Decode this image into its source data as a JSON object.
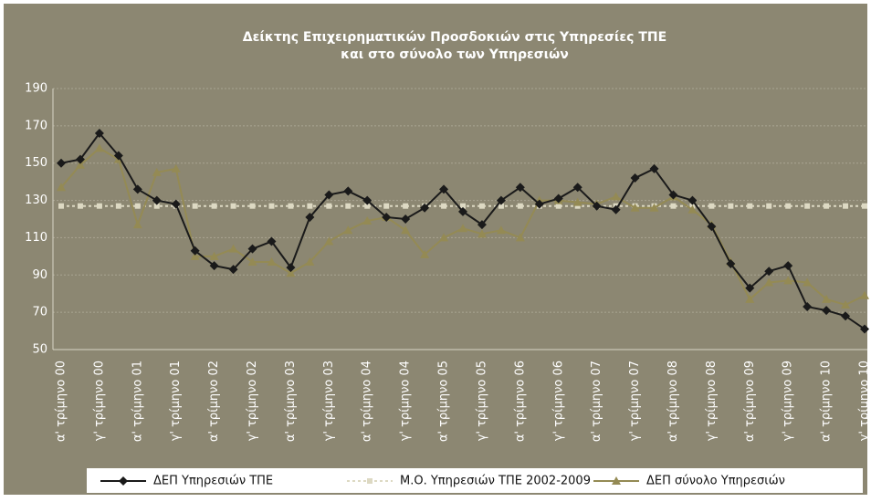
{
  "chart_data": {
    "type": "line",
    "title": [
      "Δείκτης Επιχειρηματικών Προσδοκιών στις Υπηρεσίες ΤΠΕ",
      "και στο σύνολο των Υπηρεσιών"
    ],
    "categories": [
      "α' τρίμηνο 00",
      null,
      "γ' τρίμηνο 00",
      null,
      "α' τρίμηνο 01",
      null,
      "γ' τρίμηνο 01",
      null,
      "α' τρίμηνο 02",
      null,
      "γ' τρίμηνο 02",
      null,
      "α' τρίμηνο 03",
      null,
      "γ' τρίμηνο 03",
      null,
      "α' τρίμηνο 04",
      null,
      "γ' τρίμηνο 04",
      null,
      "α' τρίμηνο 05",
      null,
      "γ' τρίμηνο 05",
      null,
      "α' τρίμηνο 06",
      null,
      "γ' τρίμηνο 06",
      null,
      "α' τρίμηνο 07",
      null,
      "γ' τρίμηνο 07",
      null,
      "α' τρίμηνο 08",
      null,
      "γ' τρίμηνο 08",
      null,
      "α' τρίμηνο 09",
      null,
      "γ' τρίμηνο 09",
      null,
      "α' τρίμηνο 10",
      null,
      "γ' τρίμηνο 10"
    ],
    "series": [
      {
        "name": "ΔΕΠ Υπηρεσιών ΤΠΕ",
        "color": "#1a1a1a",
        "marker": "diamond",
        "values": [
          150,
          152,
          166,
          154,
          136,
          130,
          128,
          103,
          95,
          93,
          104,
          108,
          94,
          121,
          133,
          135,
          130,
          121,
          120,
          126,
          136,
          124,
          117,
          130,
          137,
          128,
          131,
          137,
          127,
          125,
          142,
          147,
          133,
          130,
          116,
          96,
          83,
          92,
          95,
          73,
          71,
          68,
          61
        ]
      },
      {
        "name": "Μ.Ο. Υπηρεσιών ΤΠΕ 2002-2009",
        "color": "#ddd9c3",
        "marker": "square",
        "dashed": true,
        "values": [
          127,
          127,
          127,
          127,
          127,
          127,
          127,
          127,
          127,
          127,
          127,
          127,
          127,
          127,
          127,
          127,
          127,
          127,
          127,
          127,
          127,
          127,
          127,
          127,
          127,
          127,
          127,
          127,
          127,
          127,
          127,
          127,
          127,
          127,
          127,
          127,
          127,
          127,
          127,
          127,
          127,
          127,
          127
        ]
      },
      {
        "name": "ΔΕΠ σύνολο Υπηρεσιών",
        "color": "#948a54",
        "marker": "triangle",
        "values": [
          137,
          149,
          158,
          152,
          117,
          145,
          147,
          100,
          100,
          104,
          97,
          97,
          91,
          97,
          108,
          114,
          119,
          121,
          114,
          101,
          110,
          115,
          112,
          114,
          110,
          130,
          130,
          129,
          128,
          132,
          126,
          126,
          132,
          125,
          117,
          97,
          77,
          86,
          87,
          86,
          77,
          74,
          79
        ]
      }
    ],
    "ylim": [
      50,
      190
    ],
    "yticks": [
      50,
      70,
      90,
      110,
      130,
      150,
      170,
      190
    ],
    "grid": true
  }
}
